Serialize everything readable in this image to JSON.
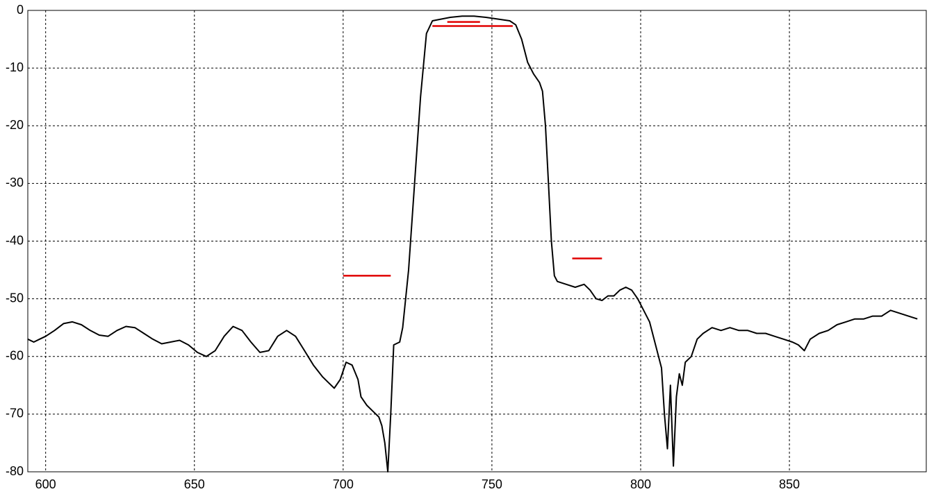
{
  "chart_data": {
    "type": "line",
    "x": [
      594,
      596,
      598,
      600,
      603,
      606,
      609,
      612,
      615,
      618,
      621,
      624,
      627,
      630,
      633,
      636,
      639,
      642,
      645,
      648,
      651,
      654,
      657,
      660,
      663,
      666,
      669,
      672,
      675,
      678,
      681,
      684,
      687,
      690,
      693,
      695,
      697,
      699,
      701,
      703,
      705,
      706,
      708,
      710,
      712,
      713,
      714,
      715,
      716,
      717,
      719,
      720,
      722,
      724,
      726,
      728,
      730,
      733,
      736,
      740,
      744,
      748,
      752,
      756,
      758,
      760,
      762,
      764,
      766,
      767,
      768,
      769,
      770,
      771,
      772,
      775,
      778,
      781,
      783,
      785,
      787,
      789,
      791,
      793,
      795,
      797,
      799,
      801,
      803,
      805,
      807,
      808,
      809,
      810,
      811,
      812,
      813,
      814,
      815,
      817,
      819,
      821,
      824,
      827,
      830,
      833,
      836,
      839,
      842,
      845,
      848,
      851,
      853,
      855,
      857,
      860,
      863,
      866,
      869,
      872,
      875,
      878,
      881,
      884,
      887,
      890,
      893
    ],
    "values": [
      -57,
      -57.5,
      -57,
      -56.5,
      -55.5,
      -54.3,
      -54,
      -54.5,
      -55.5,
      -56.3,
      -56.5,
      -55.5,
      -54.8,
      -55,
      -56,
      -57,
      -57.8,
      -57.5,
      -57.2,
      -58,
      -59.3,
      -60,
      -59,
      -56.5,
      -54.8,
      -55.5,
      -57.5,
      -59.3,
      -59,
      -56.5,
      -55.5,
      -56.5,
      -59,
      -61.5,
      -63.5,
      -64.5,
      -65.5,
      -64,
      -61,
      -61.5,
      -64,
      -67,
      -68.5,
      -69.5,
      -70.5,
      -72,
      -75,
      -80,
      -70,
      -58,
      -57.5,
      -55,
      -45,
      -30,
      -15,
      -4,
      -1.8,
      -1.5,
      -1.2,
      -1,
      -1,
      -1.2,
      -1.5,
      -1.8,
      -2.5,
      -5,
      -9,
      -11,
      -12.5,
      -14,
      -20,
      -30,
      -40,
      -46,
      -47,
      -47.5,
      -48,
      -47.5,
      -48.5,
      -50,
      -50.3,
      -49.5,
      -49.5,
      -48.5,
      -48,
      -48.5,
      -50,
      -52,
      -54,
      -58,
      -62,
      -70,
      -76,
      -65,
      -79,
      -67,
      -63,
      -65,
      -61,
      -60,
      -57,
      -56,
      -55,
      -55.5,
      -55,
      -55.5,
      -55.5,
      -56,
      -56,
      -56.5,
      -57,
      -57.5,
      -58,
      -59,
      -57,
      -56,
      -55.5,
      -54.5,
      -54,
      -53.5,
      -53.5,
      -53,
      -53,
      -52,
      -52.5,
      -53,
      -53.5
    ],
    "color": "#000000",
    "limits": [
      {
        "x": [
          700,
          716
        ],
        "y": -46
      },
      {
        "x": [
          730,
          757
        ],
        "y": -2.7
      },
      {
        "x": [
          735,
          746
        ],
        "y": -2
      },
      {
        "x": [
          777,
          787
        ],
        "y": -43
      }
    ],
    "limit_color": "#e00000",
    "xlim": [
      594,
      896
    ],
    "ylim": [
      -80,
      0
    ],
    "xticks": [
      600,
      650,
      700,
      750,
      800,
      850
    ],
    "yticks": [
      -80,
      -70,
      -60,
      -50,
      -40,
      -30,
      -20,
      -10,
      0
    ],
    "grid": true
  }
}
